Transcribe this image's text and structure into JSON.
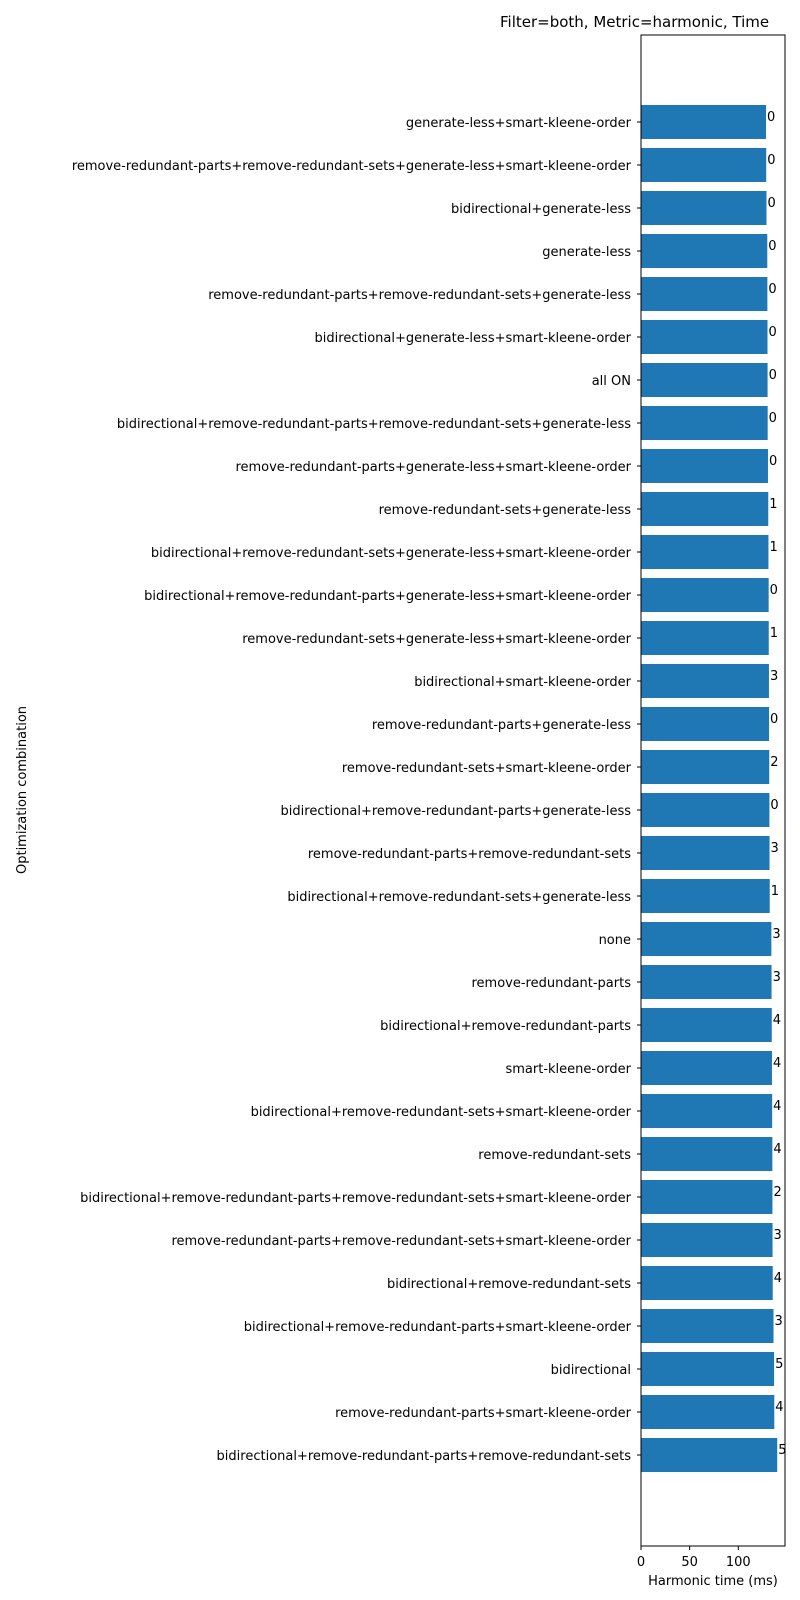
{
  "chart_data": {
    "type": "bar",
    "orientation": "horizontal",
    "title": "Filter=both, Metric=harmonic, Time",
    "xlabel": "Harmonic time (ms)",
    "ylabel": "Optimization combination",
    "xlim": [
      0,
      148
    ],
    "xticks": [
      0,
      50,
      100
    ],
    "xtick_labels": [
      "0",
      "50",
      "100"
    ],
    "grid": false,
    "bar_color": "#1f77b4",
    "categories": [
      "generate-less+smart-kleene-order",
      "remove-redundant-parts+remove-redundant-sets+generate-less+smart-kleene-order",
      "bidirectional+generate-less",
      "generate-less",
      "remove-redundant-parts+remove-redundant-sets+generate-less",
      "bidirectional+generate-less+smart-kleene-order",
      "all ON",
      "bidirectional+remove-redundant-parts+remove-redundant-sets+generate-less",
      "remove-redundant-parts+generate-less+smart-kleene-order",
      "remove-redundant-sets+generate-less",
      "bidirectional+remove-redundant-sets+generate-less+smart-kleene-order",
      "bidirectional+remove-redundant-parts+generate-less+smart-kleene-order",
      "remove-redundant-sets+generate-less+smart-kleene-order",
      "bidirectional+smart-kleene-order",
      "remove-redundant-parts+generate-less",
      "remove-redundant-sets+smart-kleene-order",
      "bidirectional+remove-redundant-parts+generate-less",
      "remove-redundant-parts+remove-redundant-sets",
      "bidirectional+remove-redundant-sets+generate-less",
      "none",
      "remove-redundant-parts",
      "bidirectional+remove-redundant-parts",
      "smart-kleene-order",
      "bidirectional+remove-redundant-sets+smart-kleene-order",
      "remove-redundant-sets",
      "bidirectional+remove-redundant-parts+remove-redundant-sets+smart-kleene-order",
      "remove-redundant-parts+remove-redundant-sets+smart-kleene-order",
      "bidirectional+remove-redundant-sets",
      "bidirectional+remove-redundant-parts+smart-kleene-order",
      "bidirectional",
      "remove-redundant-parts+smart-kleene-order",
      "bidirectional+remove-redundant-parts+remove-redundant-sets"
    ],
    "values": [
      128.5,
      128.7,
      129.0,
      129.8,
      129.9,
      130.0,
      130.1,
      130.2,
      130.5,
      130.8,
      131.0,
      131.2,
      131.3,
      131.5,
      131.6,
      131.8,
      132.0,
      132.1,
      132.3,
      134.0,
      134.2,
      134.4,
      134.6,
      134.8,
      135.0,
      135.1,
      135.2,
      135.4,
      136.2,
      136.8,
      137.0,
      140.0
    ],
    "data_labels": [
      "0",
      "0",
      "0",
      "0",
      "0",
      "0",
      "0",
      "0",
      "0",
      "1",
      "1",
      "0",
      "1",
      "3",
      "0",
      "2",
      "0",
      "3",
      "1",
      "3",
      "3",
      "4",
      "4",
      "4",
      "4",
      "2",
      "3",
      "4",
      "3",
      "5",
      "4",
      "5"
    ]
  }
}
